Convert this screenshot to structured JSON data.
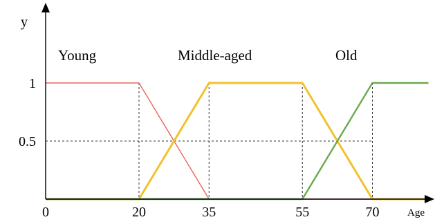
{
  "chart_data": {
    "type": "line",
    "ylabel": "y",
    "xlabel": "Age",
    "x_ticks": [
      "0",
      "20",
      "35",
      "55",
      "70"
    ],
    "y_ticks": [
      "0.5",
      "1"
    ],
    "xlim": [
      0,
      82
    ],
    "ylim": [
      0,
      1.1
    ],
    "guides": {
      "horizontal": [
        0.5
      ],
      "vertical": [
        20,
        35,
        55,
        70
      ]
    },
    "series": [
      {
        "name": "Young",
        "color": "#e8655a",
        "points": [
          [
            0,
            1
          ],
          [
            20,
            1
          ],
          [
            35,
            0
          ],
          [
            82,
            0
          ]
        ]
      },
      {
        "name": "Middle-aged",
        "color": "#f2c12e",
        "points": [
          [
            0,
            0
          ],
          [
            20,
            0
          ],
          [
            35,
            1
          ],
          [
            55,
            1
          ],
          [
            70,
            0
          ],
          [
            82,
            0
          ]
        ]
      },
      {
        "name": "Old",
        "color": "#6aa84f",
        "points": [
          [
            0,
            0
          ],
          [
            55,
            0
          ],
          [
            70,
            1
          ],
          [
            82,
            1
          ]
        ]
      }
    ]
  }
}
